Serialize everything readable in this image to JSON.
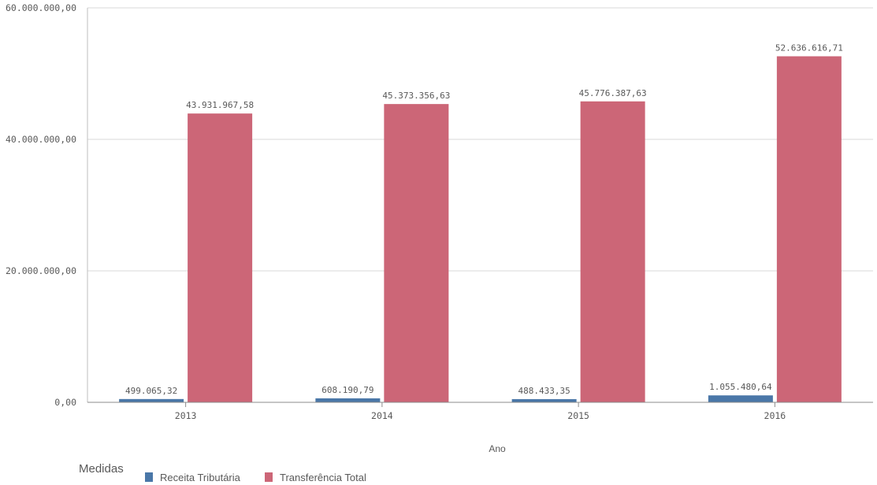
{
  "chart_data": {
    "type": "bar",
    "title": "",
    "xlabel": "Ano",
    "ylabel": "",
    "categories": [
      "2013",
      "2014",
      "2015",
      "2016"
    ],
    "ylim": [
      0,
      60000000
    ],
    "yticks": [
      0,
      20000000,
      40000000,
      60000000
    ],
    "ytick_labels": [
      "0,00",
      "20.000.000,00",
      "40.000.000,00",
      "60.000.000,00"
    ],
    "grid": true,
    "legend": {
      "title": "Medidas",
      "placement": "bottom-left"
    },
    "series": [
      {
        "name": "Receita Tributária",
        "color": "#4a77a8",
        "values": [
          499065.32,
          608190.79,
          488433.35,
          1055480.64
        ],
        "labels": [
          "499.065,32",
          "608.190,79",
          "488.433,35",
          "1.055.480,64"
        ]
      },
      {
        "name": "Transferência Total",
        "color": "#cc6677",
        "values": [
          43931967.58,
          45373356.63,
          45776387.63,
          52636616.71
        ],
        "labels": [
          "43.931.967,58",
          "45.373.356,63",
          "45.776.387,63",
          "52.636.616,71"
        ]
      }
    ]
  }
}
